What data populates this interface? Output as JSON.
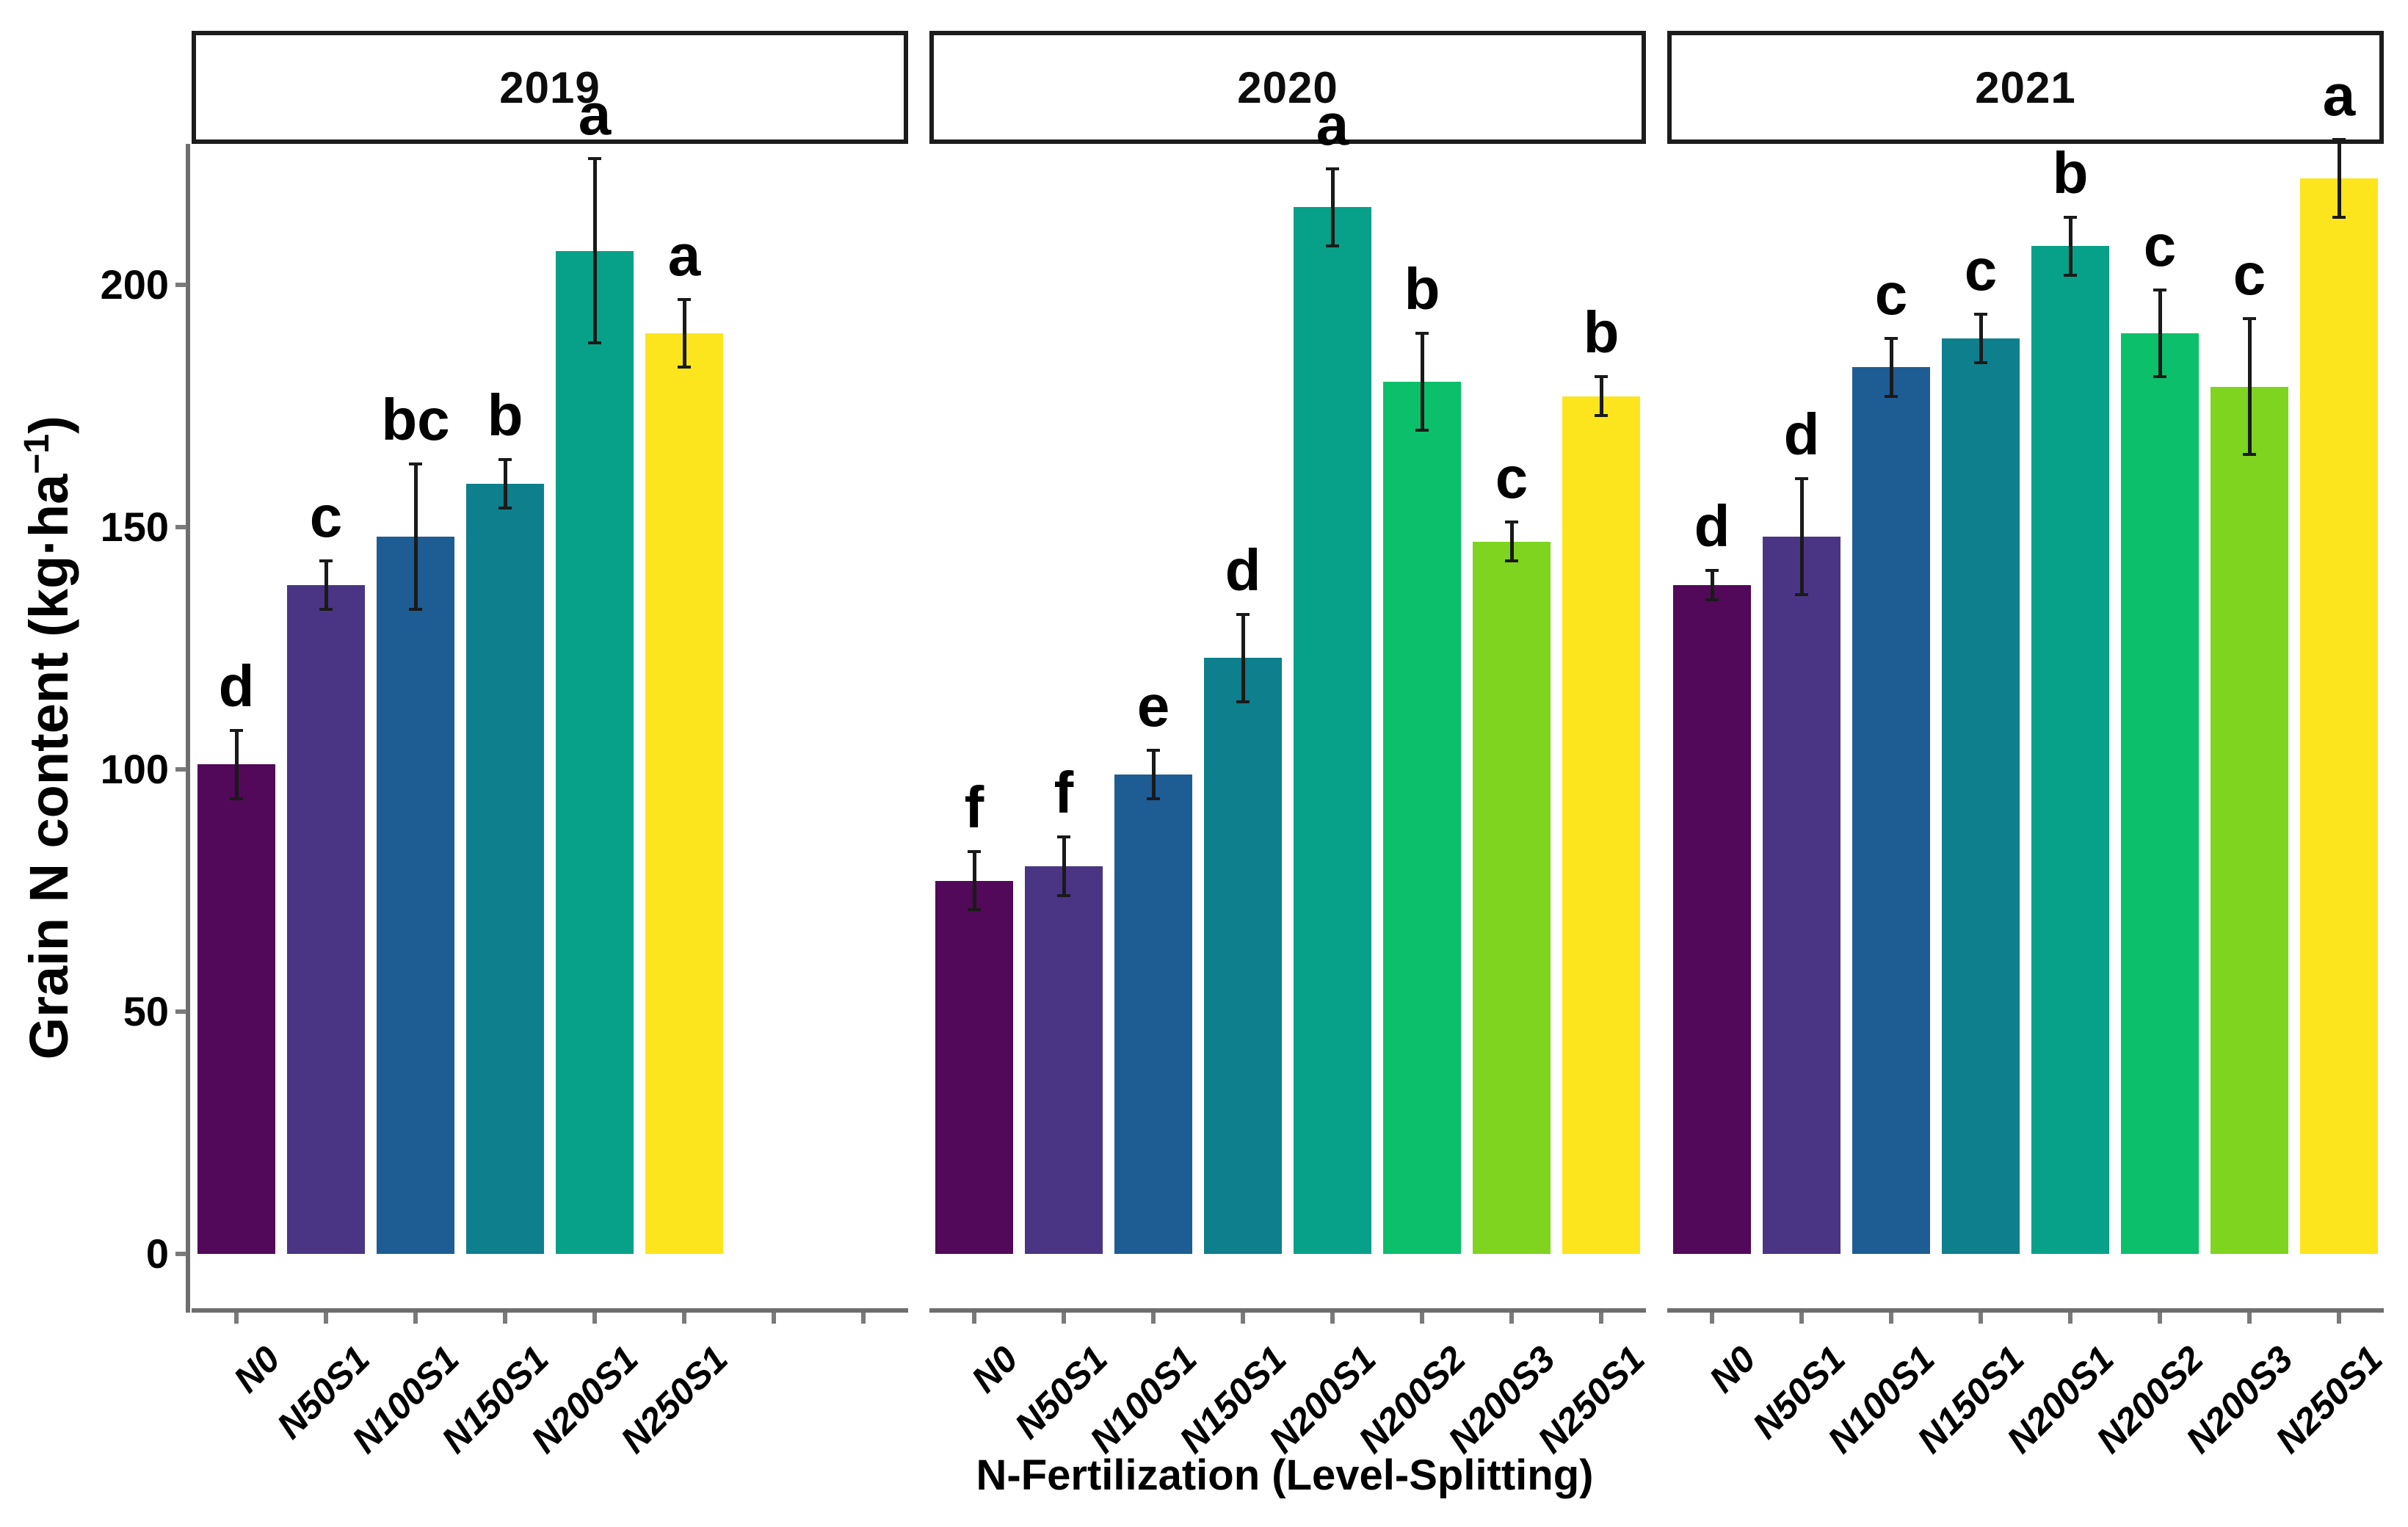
{
  "chart_data": {
    "type": "bar",
    "title": "",
    "xlabel": "N-Fertilization (Level-Splitting)",
    "ylabel": "Grain N content (kg·ha⁻¹)",
    "ylabel_parts": {
      "pre": "Grain N content (kg·ha",
      "sup": "−1",
      "post": ")"
    },
    "ylim": [
      0,
      232
    ],
    "yticks": [
      0,
      50,
      100,
      150,
      200
    ],
    "grid": "off",
    "legend": "none",
    "categories": [
      "N0",
      "N50S1",
      "N100S1",
      "N150S1",
      "N200S1",
      "N200S2",
      "N200S3",
      "N250S1"
    ],
    "palette": {
      "N0": "#520959",
      "N50S1": "#4a3584",
      "N100S1": "#1e5c94",
      "N150S1": "#0e7f8c",
      "N200S1": "#06a188",
      "N200S2": "#0cbf6b",
      "N200S3": "#7fd41f",
      "N250S1": "#fde51d"
    },
    "axis_color": "#6e6e6e",
    "errorbar_color": "#1a1a1a",
    "panels": [
      {
        "year": "2019",
        "bars": [
          {
            "label": "N0",
            "value": 101,
            "err": 7,
            "letter": "d"
          },
          {
            "label": "N50S1",
            "value": 138,
            "err": 5,
            "letter": "c"
          },
          {
            "label": "N100S1",
            "value": 148,
            "err": 15,
            "letter": "bc"
          },
          {
            "label": "N150S1",
            "value": 159,
            "err": 5,
            "letter": "b"
          },
          {
            "label": "N200S1",
            "value": 207,
            "err": 19,
            "letter": "a"
          },
          {
            "label": "N250S1",
            "value": 190,
            "err": 7,
            "letter": "a"
          }
        ]
      },
      {
        "year": "2020",
        "bars": [
          {
            "label": "N0",
            "value": 77,
            "err": 6,
            "letter": "f"
          },
          {
            "label": "N50S1",
            "value": 80,
            "err": 6,
            "letter": "f"
          },
          {
            "label": "N100S1",
            "value": 99,
            "err": 5,
            "letter": "e"
          },
          {
            "label": "N150S1",
            "value": 123,
            "err": 9,
            "letter": "d"
          },
          {
            "label": "N200S1",
            "value": 216,
            "err": 8,
            "letter": "a"
          },
          {
            "label": "N200S2",
            "value": 180,
            "err": 10,
            "letter": "b"
          },
          {
            "label": "N200S3",
            "value": 147,
            "err": 4,
            "letter": "c"
          },
          {
            "label": "N250S1",
            "value": 177,
            "err": 4,
            "letter": "b"
          }
        ]
      },
      {
        "year": "2021",
        "bars": [
          {
            "label": "N0",
            "value": 138,
            "err": 3,
            "letter": "d"
          },
          {
            "label": "N50S1",
            "value": 148,
            "err": 12,
            "letter": "d"
          },
          {
            "label": "N100S1",
            "value": 183,
            "err": 6,
            "letter": "c"
          },
          {
            "label": "N150S1",
            "value": 189,
            "err": 5,
            "letter": "c"
          },
          {
            "label": "N200S1",
            "value": 208,
            "err": 6,
            "letter": "b"
          },
          {
            "label": "N200S2",
            "value": 190,
            "err": 9,
            "letter": "c"
          },
          {
            "label": "N200S3",
            "value": 179,
            "err": 14,
            "letter": "c"
          },
          {
            "label": "N250S1",
            "value": 222,
            "err": 8,
            "letter": "a"
          }
        ]
      }
    ]
  }
}
